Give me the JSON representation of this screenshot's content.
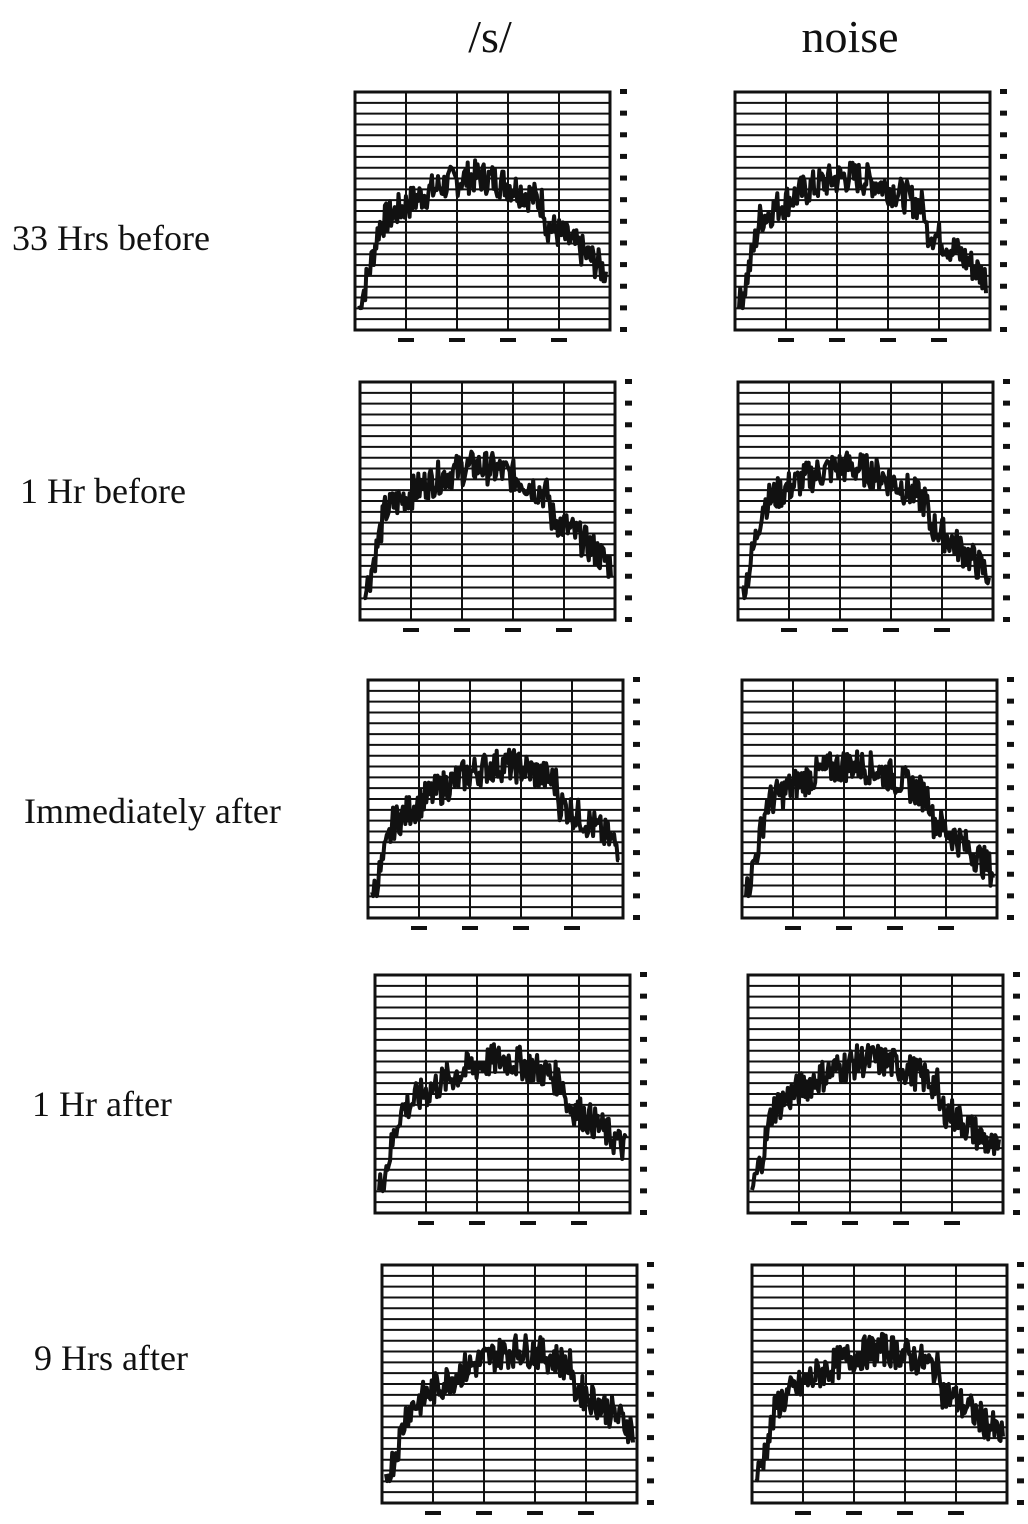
{
  "columns": [
    "/s/",
    "noise"
  ],
  "rows": [
    "33 Hrs before",
    "1 Hr before",
    "Immediately after",
    "1 Hr after",
    "9 Hrs after"
  ]
}
